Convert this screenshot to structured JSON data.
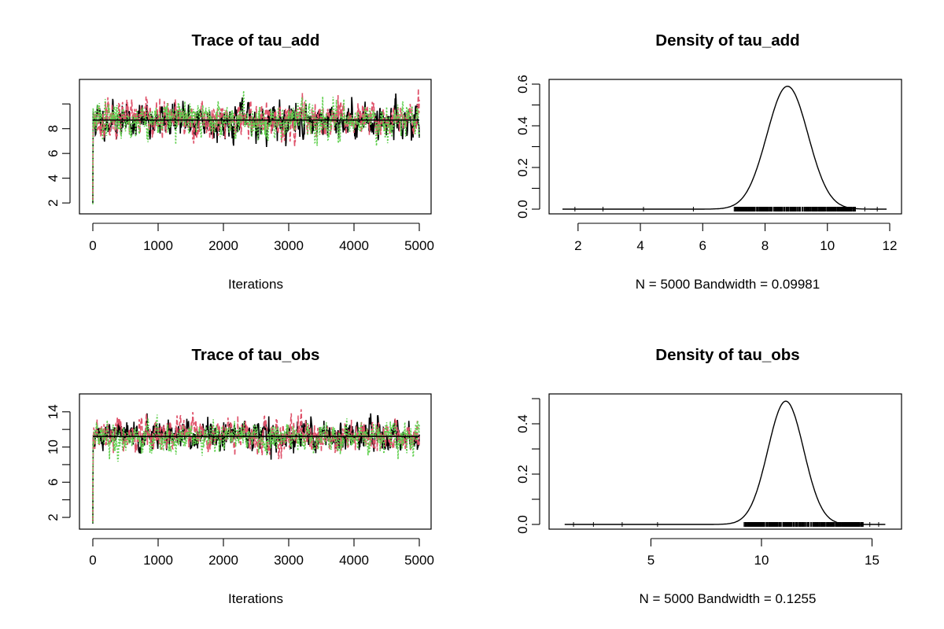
{
  "colors": {
    "chain1": "#000000",
    "chain2": "#DF536B",
    "chain3": "#61D04F",
    "axis": "#000000",
    "rug": "#000000"
  },
  "chart_data": [
    {
      "id": "trace_tau_add",
      "type": "line",
      "title": "Trace of tau_add",
      "xlabel": "Iterations",
      "ylabel": "",
      "xlim": [
        0,
        5000
      ],
      "ylim": [
        1.5,
        11.6
      ],
      "x_ticks": [
        0,
        1000,
        2000,
        3000,
        4000,
        5000
      ],
      "y_ticks": [
        2,
        4,
        6,
        8,
        10
      ],
      "y_tick_labels": [
        "2",
        "4",
        "6",
        "8",
        ""
      ],
      "grid": false,
      "series": [
        {
          "color": "#000000",
          "start": 2.0,
          "mean": 8.65,
          "sd": 0.7,
          "seed": 11
        },
        {
          "color": "#DF536B",
          "start": 2.2,
          "mean": 8.7,
          "sd": 0.7,
          "seed": 23
        },
        {
          "color": "#61D04F",
          "start": 1.9,
          "mean": 8.75,
          "sd": 0.7,
          "seed": 37
        }
      ],
      "mean_line": 8.7
    },
    {
      "id": "density_tau_add",
      "type": "line",
      "title": "Density of tau_add",
      "xlabel": "N = 5000   Bandwidth = 0.09981",
      "ylabel": "",
      "xlim": [
        1.5,
        12
      ],
      "ylim": [
        0,
        0.6
      ],
      "x_ticks": [
        2,
        4,
        6,
        8,
        10,
        12
      ],
      "y_ticks": [
        0,
        0.1,
        0.2,
        0.3,
        0.4,
        0.5,
        0.6
      ],
      "y_tick_labels": [
        "0.0",
        "",
        "0.2",
        "",
        "0.4",
        "",
        "0.6"
      ],
      "grid": false,
      "density": {
        "mode": 8.72,
        "peak": 0.59,
        "sd": 0.66,
        "start": 1.5,
        "end": 11.9
      },
      "rug_range": [
        7.0,
        10.9
      ]
    },
    {
      "id": "trace_tau_obs",
      "type": "line",
      "title": "Trace of tau_obs",
      "xlabel": "Iterations",
      "ylabel": "",
      "xlim": [
        0,
        5000
      ],
      "ylim": [
        1.2,
        15.5
      ],
      "x_ticks": [
        0,
        1000,
        2000,
        3000,
        4000,
        5000
      ],
      "y_ticks": [
        2,
        4,
        6,
        8,
        10,
        12,
        14
      ],
      "y_tick_labels": [
        "2",
        "",
        "6",
        "",
        "10",
        "",
        "14"
      ],
      "grid": false,
      "series": [
        {
          "color": "#000000",
          "start": 1.3,
          "mean": 11.3,
          "sd": 0.85,
          "seed": 51
        },
        {
          "color": "#DF536B",
          "start": 1.6,
          "mean": 11.2,
          "sd": 0.85,
          "seed": 67
        },
        {
          "color": "#61D04F",
          "start": 1.4,
          "mean": 11.1,
          "sd": 0.85,
          "seed": 79
        }
      ],
      "mean_line": 11.2
    },
    {
      "id": "density_tau_obs",
      "type": "line",
      "title": "Density of tau_obs",
      "xlabel": "N = 5000   Bandwidth = 0.1255",
      "ylabel": "",
      "xlim": [
        1,
        15.8
      ],
      "ylim": [
        0,
        0.5
      ],
      "x_ticks": [
        5,
        10,
        15
      ],
      "y_ticks": [
        0,
        0.1,
        0.2,
        0.3,
        0.4,
        0.5
      ],
      "y_tick_labels": [
        "0.0",
        "",
        "0.2",
        "",
        "0.4",
        ""
      ],
      "grid": false,
      "density": {
        "mode": 11.1,
        "peak": 0.49,
        "sd": 0.81,
        "start": 1.1,
        "end": 15.6
      },
      "rug_range": [
        9.2,
        14.6
      ]
    }
  ]
}
